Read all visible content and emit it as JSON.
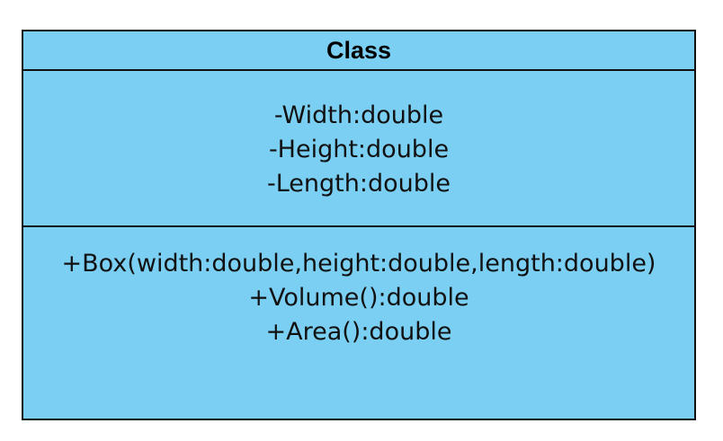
{
  "diagram": {
    "class_name": "Class",
    "attributes": [
      "-Width:double",
      "-Height:double",
      "-Length:double"
    ],
    "methods": [
      "+Box(width:double,height:double,length:double)",
      "+Volume():double",
      "+Area():double"
    ],
    "colors": {
      "fill": "#7acff3",
      "border": "#111111"
    }
  }
}
